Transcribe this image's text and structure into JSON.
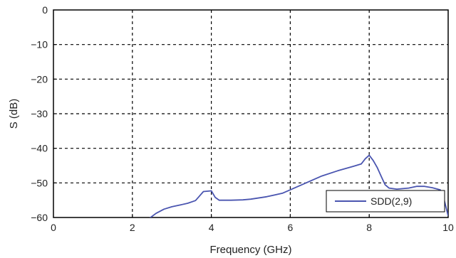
{
  "chart_data": {
    "type": "line",
    "xlabel": "Frequency (GHz)",
    "ylabel": "S (dB)",
    "xlim": [
      0,
      10
    ],
    "ylim": [
      -60,
      0
    ],
    "xticks": [
      0,
      2,
      4,
      6,
      8,
      10
    ],
    "yticks": [
      0,
      -10,
      -20,
      -30,
      -40,
      -50,
      -60
    ],
    "xtick_labels": [
      "0",
      "2",
      "4",
      "6",
      "8",
      "10"
    ],
    "ytick_labels": [
      "0",
      "−10",
      "−20",
      "−30",
      "−40",
      "−50",
      "−60"
    ],
    "grid": true,
    "legend_position": "bottom-right",
    "colors": {
      "series": "#4a55b0",
      "grid": "#000000",
      "frame": "#000000"
    },
    "series": [
      {
        "name": "SDD(2,9)",
        "x": [
          2.4,
          2.6,
          2.8,
          3.0,
          3.2,
          3.4,
          3.6,
          3.7,
          3.8,
          3.9,
          4.0,
          4.1,
          4.2,
          4.5,
          4.8,
          5.0,
          5.4,
          5.8,
          6.0,
          6.4,
          6.8,
          7.2,
          7.6,
          7.8,
          7.9,
          8.0,
          8.1,
          8.2,
          8.3,
          8.4,
          8.5,
          8.7,
          9.0,
          9.2,
          9.4,
          9.6,
          9.8,
          9.9,
          10.0
        ],
        "y": [
          -60.5,
          -58.8,
          -57.6,
          -56.9,
          -56.4,
          -55.9,
          -55.1,
          -53.8,
          -52.5,
          -52.4,
          -52.3,
          -54.2,
          -55.0,
          -55.0,
          -54.9,
          -54.7,
          -54.0,
          -53.0,
          -52.0,
          -50.0,
          -48.0,
          -46.5,
          -45.2,
          -44.5,
          -43.0,
          -42.0,
          -43.5,
          -45.5,
          -48.0,
          -50.5,
          -51.5,
          -51.8,
          -51.5,
          -51.0,
          -51.0,
          -51.4,
          -52.0,
          -55.0,
          -59.5
        ]
      }
    ]
  }
}
